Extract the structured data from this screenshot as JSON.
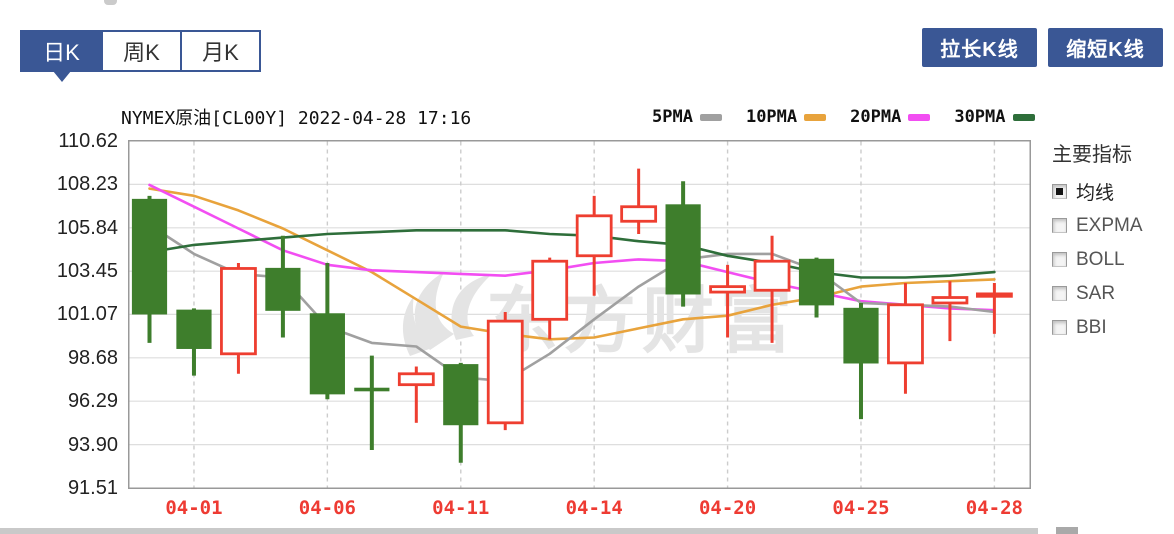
{
  "colors": {
    "accent": "#3a5795",
    "up": "#ee3e30",
    "down": "#3e7e2c",
    "border": "#999999",
    "grid": "#dedede",
    "grid_dash": "#cccccc",
    "tick_red": "#ee3b33",
    "watermark": "#e4e4e4"
  },
  "tabs": [
    {
      "label": "日K",
      "active": true
    },
    {
      "label": "周K",
      "active": false
    },
    {
      "label": "月K",
      "active": false
    }
  ],
  "actions": [
    {
      "label": "拉长K线"
    },
    {
      "label": "缩短K线"
    }
  ],
  "sidebar": {
    "heading": "主要指标",
    "items": [
      {
        "label": "均线",
        "checked": true
      },
      {
        "label": "EXPMA",
        "checked": false
      },
      {
        "label": "BOLL",
        "checked": false
      },
      {
        "label": "SAR",
        "checked": false
      },
      {
        "label": "BBI",
        "checked": false
      }
    ]
  },
  "chart_data": {
    "type": "candlestick",
    "title": "NYMEX原油[CL00Y] 2022-04-28 17:16",
    "watermark": "东方财富",
    "grid": true,
    "legend_position": "top-right",
    "y_range": [
      91.51,
      110.62
    ],
    "y_ticks": [
      "110.62",
      "108.23",
      "105.84",
      "103.45",
      "101.07",
      "98.68",
      "96.29",
      "93.90",
      "91.51"
    ],
    "x_tick_labels": [
      "04-01",
      "04-06",
      "04-11",
      "04-14",
      "04-20",
      "04-25",
      "04-28"
    ],
    "x_tick_indices": [
      1,
      4,
      7,
      10,
      13,
      16,
      19
    ],
    "candles": [
      {
        "date": "03-31",
        "open": 107.4,
        "high": 107.6,
        "low": 99.5,
        "close": 101.1
      },
      {
        "date": "04-01",
        "open": 101.3,
        "high": 101.4,
        "low": 97.7,
        "close": 99.2
      },
      {
        "date": "04-04",
        "open": 98.9,
        "high": 103.9,
        "low": 97.8,
        "close": 103.6
      },
      {
        "date": "04-05",
        "open": 103.6,
        "high": 105.4,
        "low": 99.8,
        "close": 101.3
      },
      {
        "date": "04-06",
        "open": 101.1,
        "high": 103.9,
        "low": 96.4,
        "close": 96.7
      },
      {
        "date": "04-07",
        "open": 97.0,
        "high": 98.8,
        "low": 93.6,
        "close": 96.9
      },
      {
        "date": "04-08",
        "open": 97.2,
        "high": 98.2,
        "low": 95.1,
        "close": 97.8
      },
      {
        "date": "04-11",
        "open": 98.3,
        "high": 98.4,
        "low": 92.9,
        "close": 95.0
      },
      {
        "date": "04-12",
        "open": 95.1,
        "high": 101.2,
        "low": 94.7,
        "close": 100.7
      },
      {
        "date": "04-13",
        "open": 100.8,
        "high": 104.2,
        "low": 99.7,
        "close": 104.0
      },
      {
        "date": "04-14",
        "open": 104.3,
        "high": 107.6,
        "low": 102.1,
        "close": 106.5
      },
      {
        "date": "04-18",
        "open": 106.2,
        "high": 109.1,
        "low": 105.5,
        "close": 107.0
      },
      {
        "date": "04-19",
        "open": 107.1,
        "high": 108.4,
        "low": 101.5,
        "close": 102.2
      },
      {
        "date": "04-20",
        "open": 102.3,
        "high": 103.8,
        "low": 99.8,
        "close": 102.6
      },
      {
        "date": "04-21",
        "open": 102.4,
        "high": 105.4,
        "low": 99.5,
        "close": 104.0
      },
      {
        "date": "04-22",
        "open": 104.1,
        "high": 104.2,
        "low": 100.9,
        "close": 101.6
      },
      {
        "date": "04-25",
        "open": 101.4,
        "high": 101.7,
        "low": 95.3,
        "close": 98.4
      },
      {
        "date": "04-26",
        "open": 98.4,
        "high": 102.8,
        "low": 96.7,
        "close": 101.6
      },
      {
        "date": "04-27",
        "open": 101.7,
        "high": 102.9,
        "low": 99.6,
        "close": 102.0
      },
      {
        "date": "04-28",
        "open": 102.1,
        "high": 102.8,
        "low": 100.0,
        "close": 102.2
      }
    ],
    "ma_series": [
      {
        "name": "5PMA",
        "color": "#a0a0a0",
        "values": [
          106.0,
          104.4,
          103.3,
          103.1,
          100.4,
          99.5,
          99.3,
          97.6,
          97.4,
          98.9,
          100.8,
          102.6,
          104.1,
          104.4,
          104.4,
          103.5,
          101.7,
          101.6,
          101.5,
          101.2
        ]
      },
      {
        "name": "10PMA",
        "color": "#e8a33c",
        "values": [
          108.0,
          107.6,
          106.8,
          105.8,
          104.6,
          103.4,
          101.9,
          100.4,
          100.0,
          99.7,
          99.8,
          100.3,
          100.8,
          101.0,
          101.6,
          102.0,
          102.6,
          102.8,
          102.9,
          103.0
        ]
      },
      {
        "name": "20PMA",
        "color": "#f24ef2",
        "values": [
          108.2,
          107.0,
          105.8,
          104.6,
          103.8,
          103.5,
          103.4,
          103.3,
          103.2,
          103.5,
          103.9,
          104.1,
          104.0,
          103.4,
          102.8,
          102.3,
          101.8,
          101.6,
          101.4,
          101.3
        ]
      },
      {
        "name": "30PMA",
        "color": "#2e6e3a",
        "values": [
          104.5,
          104.9,
          105.1,
          105.3,
          105.5,
          105.6,
          105.7,
          105.7,
          105.7,
          105.5,
          105.4,
          105.1,
          104.9,
          104.3,
          103.9,
          103.4,
          103.1,
          103.1,
          103.2,
          103.4
        ]
      }
    ]
  }
}
